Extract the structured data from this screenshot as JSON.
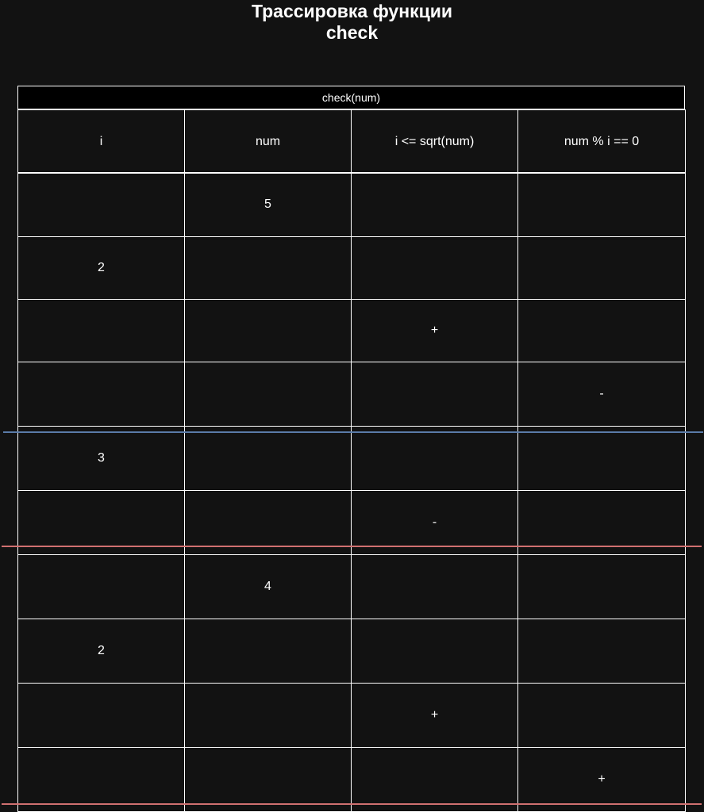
{
  "title": {
    "line1": "Трассировка функции",
    "line2": "check"
  },
  "table": {
    "caption": "check(num)",
    "columns": [
      "i",
      "num",
      "i <= sqrt(num)",
      "num % i == 0"
    ],
    "rows": [
      [
        "",
        "5",
        "",
        ""
      ],
      [
        "2",
        "",
        "",
        ""
      ],
      [
        "",
        "",
        "+",
        ""
      ],
      [
        "",
        "",
        "",
        "-"
      ],
      [
        "3",
        "",
        "",
        ""
      ],
      [
        "",
        "",
        "-",
        ""
      ],
      [
        "",
        "4",
        "",
        ""
      ],
      [
        "2",
        "",
        "",
        ""
      ],
      [
        "",
        "",
        "+",
        ""
      ],
      [
        "",
        "",
        "",
        "+"
      ]
    ]
  },
  "separators": [
    {
      "color": "#5a7ba8"
    },
    {
      "color": "#d07070"
    },
    {
      "color": "#d07070"
    }
  ]
}
